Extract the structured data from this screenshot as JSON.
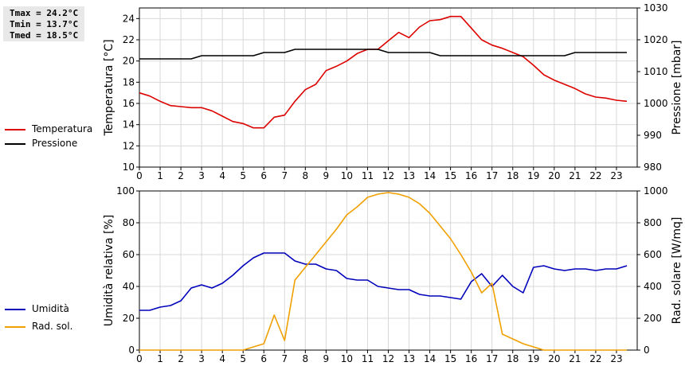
{
  "stats": {
    "tmax": "Tmax = 24.2°C",
    "tmin": "Tmin = 13.7°C",
    "tmed": "Tmed = 18.5°C"
  },
  "legend": {
    "top": [
      {
        "label": "Temperatura",
        "color": "#dd0000"
      },
      {
        "label": "Pressione",
        "color": "#000000"
      }
    ],
    "bottom": [
      {
        "label": "Umidità",
        "color": "#0000bb"
      },
      {
        "label": "Rad. sol.",
        "color": "#f0a000"
      }
    ]
  },
  "chart_data": [
    {
      "type": "line",
      "xlabel": "",
      "xlim": [
        0,
        24
      ],
      "x_ticks": [
        0,
        1,
        2,
        3,
        4,
        5,
        6,
        7,
        8,
        9,
        10,
        11,
        12,
        13,
        14,
        15,
        16,
        17,
        18,
        19,
        20,
        21,
        22,
        23
      ],
      "y_left": {
        "label": "Temperatura [°C]",
        "lim": [
          10,
          25
        ],
        "ticks": [
          10,
          12,
          14,
          16,
          18,
          20,
          22,
          24
        ]
      },
      "y_right": {
        "label": "Pressione [mbar]",
        "lim": [
          980,
          1030
        ],
        "ticks": [
          980,
          990,
          1000,
          1010,
          1020,
          1030
        ]
      },
      "grid": true,
      "series": [
        {
          "name": "Temperatura",
          "axis": "left",
          "color": "#dd0000",
          "x": [
            0,
            0.5,
            1,
            1.5,
            2,
            2.5,
            3,
            3.5,
            4,
            4.5,
            5,
            5.5,
            6,
            6.5,
            7,
            7.5,
            8,
            8.5,
            9,
            9.5,
            10,
            10.5,
            11,
            11.5,
            12,
            12.5,
            13,
            13.5,
            14,
            14.5,
            15,
            15.5,
            16,
            16.5,
            17,
            17.5,
            18,
            18.5,
            19,
            19.5,
            20,
            20.5,
            21,
            21.5,
            22,
            22.5,
            23,
            23.5
          ],
          "y": [
            17.0,
            16.7,
            16.2,
            15.8,
            15.7,
            15.6,
            15.6,
            15.3,
            14.8,
            14.3,
            14.1,
            13.7,
            13.7,
            14.7,
            14.9,
            16.2,
            17.3,
            17.8,
            19.1,
            19.5,
            20.0,
            20.7,
            21.1,
            21.1,
            21.9,
            22.7,
            22.2,
            23.2,
            23.8,
            23.9,
            24.2,
            24.2,
            23.1,
            22.0,
            21.5,
            21.2,
            20.8,
            20.4,
            19.6,
            18.7,
            18.2,
            17.8,
            17.4,
            16.9,
            16.6,
            16.5,
            16.3,
            16.2
          ]
        },
        {
          "name": "Pressione",
          "axis": "right",
          "color": "#000000",
          "x": [
            0,
            2.5,
            3,
            5,
            5.5,
            6,
            7,
            7.5,
            11,
            11.5,
            12,
            14,
            14.5,
            19.5,
            20.5,
            21,
            23.5
          ],
          "y": [
            1014,
            1014,
            1015,
            1015,
            1015,
            1016,
            1016,
            1017,
            1017,
            1017,
            1016,
            1016,
            1015,
            1015,
            1015,
            1016,
            1016
          ]
        }
      ]
    },
    {
      "type": "line",
      "xlabel": "",
      "xlim": [
        0,
        24
      ],
      "x_ticks": [
        0,
        1,
        2,
        3,
        4,
        5,
        6,
        7,
        8,
        9,
        10,
        11,
        12,
        13,
        14,
        15,
        16,
        17,
        18,
        19,
        20,
        21,
        22,
        23
      ],
      "y_left": {
        "label": "Umidità relativa [%]",
        "lim": [
          0,
          100
        ],
        "ticks": [
          0,
          20,
          40,
          60,
          80,
          100
        ]
      },
      "y_right": {
        "label": "Rad. solare [W/mq]",
        "lim": [
          0,
          1000
        ],
        "ticks": [
          0,
          200,
          400,
          600,
          800,
          1000
        ]
      },
      "grid": true,
      "series": [
        {
          "name": "Umidità",
          "axis": "left",
          "color": "#0000bb",
          "x": [
            0,
            0.5,
            1,
            1.5,
            2,
            2.5,
            3,
            3.5,
            4,
            4.5,
            5,
            5.5,
            6,
            6.5,
            7,
            7.5,
            8,
            8.5,
            9,
            9.5,
            10,
            10.5,
            11,
            11.5,
            12,
            12.5,
            13,
            13.5,
            14,
            14.5,
            15,
            15.5,
            16,
            16.5,
            17,
            17.5,
            18,
            18.5,
            19,
            19.5,
            20,
            20.5,
            21,
            21.5,
            22,
            22.5,
            23,
            23.5
          ],
          "y": [
            25,
            25,
            27,
            28,
            31,
            39,
            41,
            39,
            42,
            47,
            53,
            58,
            61,
            61,
            61,
            56,
            54,
            54,
            51,
            50,
            45,
            44,
            44,
            40,
            39,
            38,
            38,
            35,
            34,
            34,
            33,
            32,
            43,
            48,
            40,
            47,
            40,
            36,
            52,
            53,
            51,
            50,
            51,
            51,
            50,
            51,
            51,
            53
          ]
        },
        {
          "name": "Rad. sol.",
          "axis": "right",
          "color": "#f0a000",
          "x": [
            0,
            5,
            5.5,
            6,
            6.5,
            7,
            7.5,
            8,
            8.5,
            9,
            9.5,
            10,
            10.5,
            11,
            11.5,
            12,
            12.5,
            13,
            13.5,
            14,
            14.5,
            15,
            15.5,
            16,
            16.5,
            17,
            17.5,
            18,
            18.5,
            19,
            19.5,
            20,
            21,
            23.5
          ],
          "y": [
            0,
            0,
            20,
            40,
            220,
            60,
            440,
            520,
            600,
            680,
            760,
            850,
            900,
            960,
            980,
            990,
            980,
            960,
            920,
            860,
            780,
            700,
            600,
            490,
            360,
            420,
            100,
            70,
            40,
            20,
            0,
            0,
            0,
            0
          ]
        }
      ]
    }
  ]
}
